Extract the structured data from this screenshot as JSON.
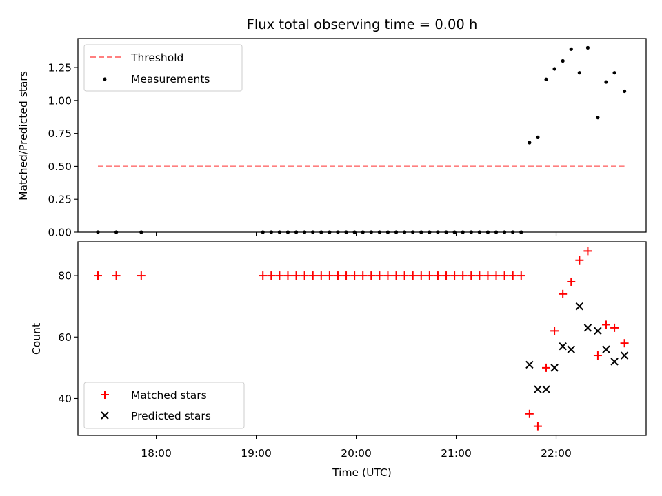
{
  "chart_data": [
    {
      "type": "scatter",
      "title": "Flux total observing time = 0.00 h",
      "xlabel": "",
      "ylabel": "Matched/Predicted stars",
      "xlim": [
        "17:13",
        "22:54"
      ],
      "ylim": [
        0.0,
        1.47
      ],
      "yticks": [
        "0.00",
        "0.25",
        "0.50",
        "0.75",
        "1.00",
        "1.25"
      ],
      "legend_placement": "top-left",
      "legend": [
        "Threshold",
        "Measurements"
      ],
      "threshold": {
        "name": "Threshold",
        "value": 0.5,
        "x_range": [
          "17:25",
          "22:41"
        ],
        "color": "#ff7f7f"
      },
      "series": [
        {
          "name": "Measurements",
          "marker": "dot",
          "color": "#000000",
          "points": [
            [
              "17:25",
              0.0
            ],
            [
              "17:36",
              0.0
            ],
            [
              "17:51",
              0.0
            ],
            [
              "19:04",
              0.0
            ],
            [
              "19:09",
              0.0
            ],
            [
              "19:14",
              0.0
            ],
            [
              "19:19",
              0.0
            ],
            [
              "19:24",
              0.0
            ],
            [
              "19:29",
              0.0
            ],
            [
              "19:34",
              0.0
            ],
            [
              "19:39",
              0.0
            ],
            [
              "19:44",
              0.0
            ],
            [
              "19:49",
              0.0
            ],
            [
              "19:54",
              0.0
            ],
            [
              "19:59",
              0.0
            ],
            [
              "20:04",
              0.0
            ],
            [
              "20:09",
              0.0
            ],
            [
              "20:14",
              0.0
            ],
            [
              "20:19",
              0.0
            ],
            [
              "20:24",
              0.0
            ],
            [
              "20:29",
              0.0
            ],
            [
              "20:34",
              0.0
            ],
            [
              "20:39",
              0.0
            ],
            [
              "20:44",
              0.0
            ],
            [
              "20:49",
              0.0
            ],
            [
              "20:54",
              0.0
            ],
            [
              "20:59",
              0.0
            ],
            [
              "21:04",
              0.0
            ],
            [
              "21:09",
              0.0
            ],
            [
              "21:14",
              0.0
            ],
            [
              "21:19",
              0.0
            ],
            [
              "21:24",
              0.0
            ],
            [
              "21:29",
              0.0
            ],
            [
              "21:34",
              0.0
            ],
            [
              "21:39",
              0.0
            ],
            [
              "21:44",
              0.68
            ],
            [
              "21:49",
              0.72
            ],
            [
              "21:54",
              1.16
            ],
            [
              "21:59",
              1.24
            ],
            [
              "22:04",
              1.3
            ],
            [
              "22:09",
              1.39
            ],
            [
              "22:14",
              1.21
            ],
            [
              "22:19",
              1.4
            ],
            [
              "22:25",
              0.87
            ],
            [
              "22:30",
              1.14
            ],
            [
              "22:35",
              1.21
            ],
            [
              "22:41",
              1.07
            ]
          ]
        }
      ],
      "grid": false
    },
    {
      "type": "scatter",
      "title": "",
      "xlabel": "Time (UTC)",
      "ylabel": "Count",
      "xlim": [
        "17:13",
        "22:54"
      ],
      "ylim": [
        28,
        91
      ],
      "xticks": [
        "18:00",
        "19:00",
        "20:00",
        "21:00",
        "22:00"
      ],
      "yticks": [
        "40",
        "60",
        "80"
      ],
      "legend_placement": "bottom-left",
      "legend": [
        "Matched stars",
        "Predicted stars"
      ],
      "series": [
        {
          "name": "Matched stars",
          "marker": "plus",
          "color": "#ff0000",
          "points": [
            [
              "17:25",
              80
            ],
            [
              "17:36",
              80
            ],
            [
              "17:51",
              80
            ],
            [
              "19:04",
              80
            ],
            [
              "19:09",
              80
            ],
            [
              "19:14",
              80
            ],
            [
              "19:19",
              80
            ],
            [
              "19:24",
              80
            ],
            [
              "19:29",
              80
            ],
            [
              "19:34",
              80
            ],
            [
              "19:39",
              80
            ],
            [
              "19:44",
              80
            ],
            [
              "19:49",
              80
            ],
            [
              "19:54",
              80
            ],
            [
              "19:59",
              80
            ],
            [
              "20:04",
              80
            ],
            [
              "20:09",
              80
            ],
            [
              "20:14",
              80
            ],
            [
              "20:19",
              80
            ],
            [
              "20:24",
              80
            ],
            [
              "20:29",
              80
            ],
            [
              "20:34",
              80
            ],
            [
              "20:39",
              80
            ],
            [
              "20:44",
              80
            ],
            [
              "20:49",
              80
            ],
            [
              "20:54",
              80
            ],
            [
              "20:59",
              80
            ],
            [
              "21:04",
              80
            ],
            [
              "21:09",
              80
            ],
            [
              "21:14",
              80
            ],
            [
              "21:19",
              80
            ],
            [
              "21:24",
              80
            ],
            [
              "21:29",
              80
            ],
            [
              "21:34",
              80
            ],
            [
              "21:39",
              80
            ],
            [
              "21:44",
              35
            ],
            [
              "21:49",
              31
            ],
            [
              "21:54",
              50
            ],
            [
              "21:59",
              62
            ],
            [
              "22:04",
              74
            ],
            [
              "22:09",
              78
            ],
            [
              "22:14",
              85
            ],
            [
              "22:19",
              88
            ],
            [
              "22:25",
              54
            ],
            [
              "22:30",
              64
            ],
            [
              "22:35",
              63
            ],
            [
              "22:41",
              58
            ]
          ]
        },
        {
          "name": "Predicted stars",
          "marker": "x",
          "color": "#000000",
          "points": [
            [
              "21:44",
              51
            ],
            [
              "21:49",
              43
            ],
            [
              "21:54",
              43
            ],
            [
              "21:59",
              50
            ],
            [
              "22:04",
              57
            ],
            [
              "22:09",
              56
            ],
            [
              "22:14",
              70
            ],
            [
              "22:19",
              63
            ],
            [
              "22:25",
              62
            ],
            [
              "22:30",
              56
            ],
            [
              "22:35",
              52
            ],
            [
              "22:41",
              54
            ]
          ]
        }
      ],
      "grid": false
    }
  ]
}
